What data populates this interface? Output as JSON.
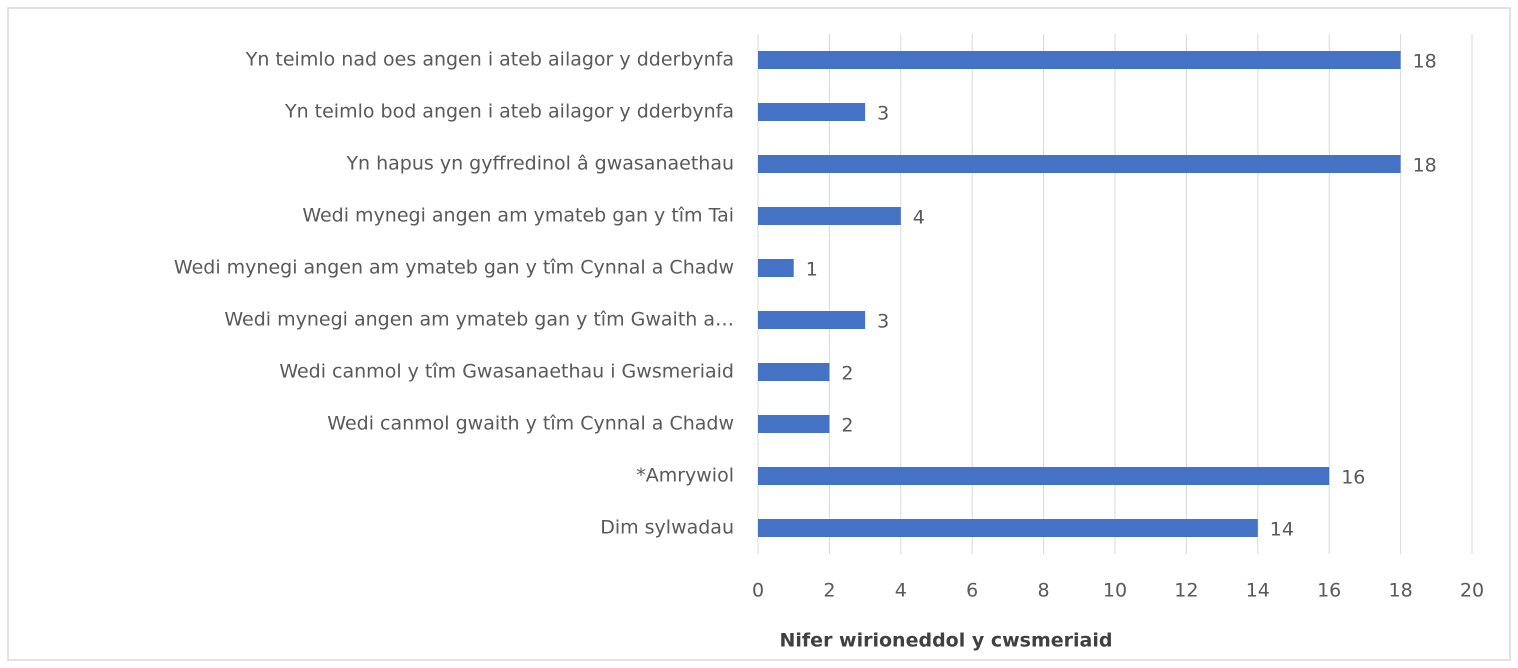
{
  "chart_data": {
    "type": "bar",
    "orientation": "horizontal",
    "x_label": "Nifer wirioneddol y cwsmeriaid",
    "categories": [
      "Yn teimlo nad oes angen i ateb ailagor y dderbynfa",
      "Yn teimlo bod angen i ateb ailagor y dderbynfa",
      "Yn hapus yn gyffredinol â gwasanaethau",
      "Wedi mynegi angen am ymateb gan y tîm Tai",
      "Wedi mynegi angen am ymateb gan y tîm Cynnal a Chadw",
      "Wedi mynegi angen am ymateb gan y tîm Gwaith a…",
      "Wedi canmol y tîm Gwasanaethau i Gwsmeriaid",
      "Wedi canmol gwaith y tîm Cynnal a Chadw",
      "*Amrywiol",
      "Dim sylwadau"
    ],
    "values": [
      18,
      3,
      18,
      4,
      1,
      3,
      2,
      2,
      16,
      14
    ],
    "color": "#4472c4",
    "xlim": [
      0,
      20
    ],
    "xticks": [
      0,
      2,
      4,
      6,
      8,
      10,
      12,
      14,
      16,
      18,
      20
    ],
    "grid": true
  }
}
